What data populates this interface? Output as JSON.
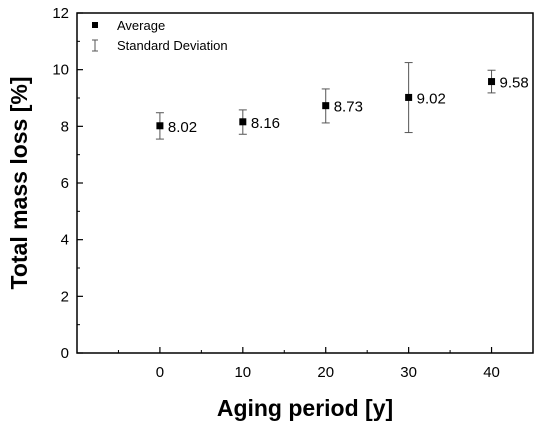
{
  "chart_data": {
    "type": "scatter",
    "xlabel": "Aging period [y]",
    "ylabel": "Total mass loss [%]",
    "xlim": [
      -10,
      45
    ],
    "ylim": [
      0,
      12
    ],
    "xticks": [
      0,
      10,
      20,
      30,
      40
    ],
    "yticks": [
      0,
      2,
      4,
      6,
      8,
      10,
      12
    ],
    "grid": false,
    "legend_position": "top-left",
    "series": [
      {
        "name": "Average",
        "x": [
          0,
          10,
          20,
          30,
          40
        ],
        "y": [
          8.02,
          8.16,
          8.73,
          9.02,
          9.58
        ],
        "labels": [
          "8.02",
          "8.16",
          "8.73",
          "9.02",
          "9.58"
        ]
      }
    ],
    "error_bars": {
      "name": "Standard Deviation",
      "x": [
        0,
        10,
        20,
        30,
        40
      ],
      "low": [
        7.55,
        7.72,
        8.12,
        7.78,
        9.18
      ],
      "high": [
        8.48,
        8.58,
        9.32,
        10.25,
        9.98
      ]
    },
    "colors": {
      "marker": "#000000",
      "error_bar": "#555555",
      "axis": "#000000"
    }
  }
}
